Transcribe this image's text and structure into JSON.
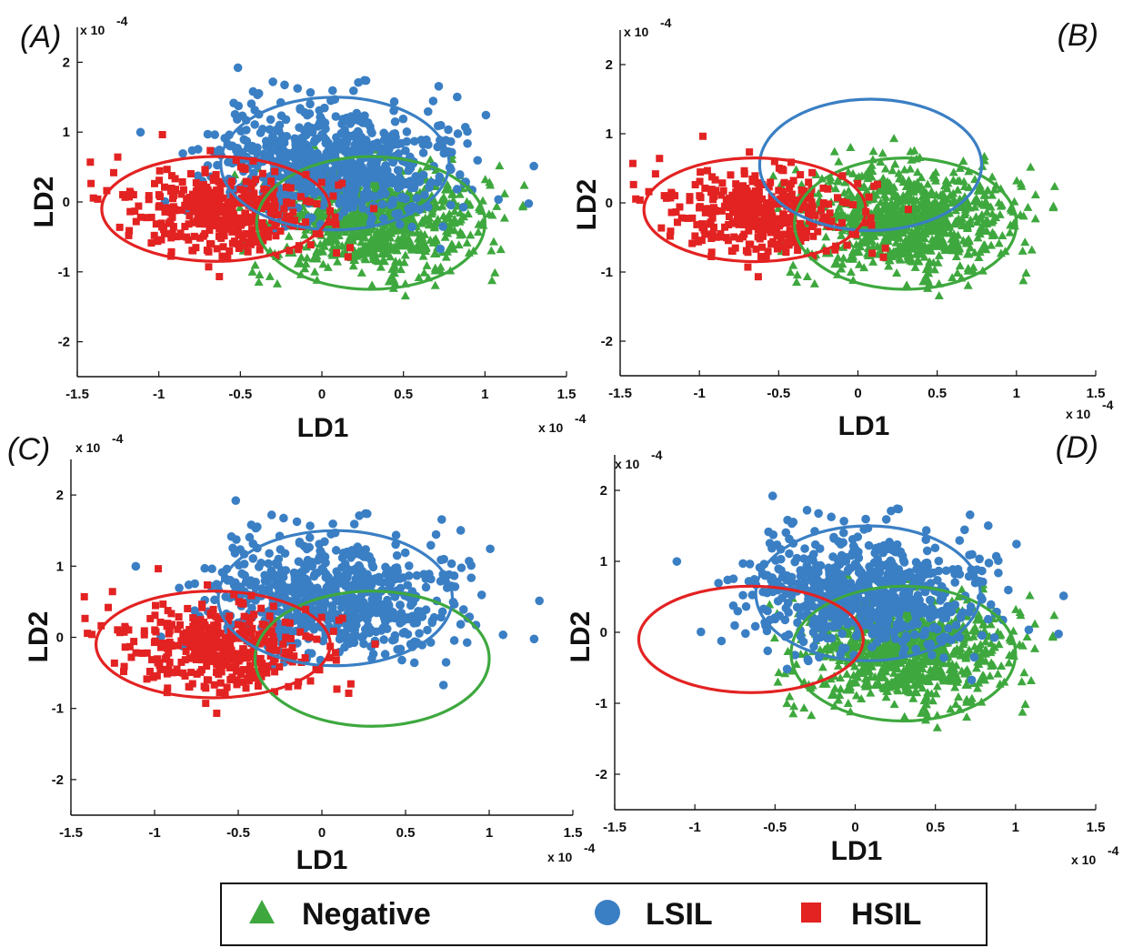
{
  "chart_data": {
    "type": "scatter",
    "series": [
      {
        "name": "Negative",
        "marker": "triangle",
        "color": "#3ea83e",
        "cluster": {
          "center": [
            0.3,
            -0.25
          ],
          "spread": [
            0.32,
            0.38
          ],
          "count": 900
        }
      },
      {
        "name": "LSIL",
        "marker": "circle",
        "color": "#3a7fc4",
        "cluster": {
          "center": [
            0.08,
            0.55
          ],
          "spread": [
            0.38,
            0.42
          ],
          "count": 700
        }
      },
      {
        "name": "HSIL",
        "marker": "square",
        "color": "#e32222",
        "cluster": {
          "center": [
            -0.62,
            -0.15
          ],
          "spread": [
            0.3,
            0.32
          ],
          "count": 380
        }
      }
    ],
    "ellipses": [
      {
        "series": "Negative",
        "center": [
          0.3,
          -0.3
        ],
        "radii": [
          0.7,
          0.95
        ]
      },
      {
        "series": "LSIL",
        "center": [
          0.08,
          0.55
        ],
        "radii": [
          0.7,
          0.95
        ]
      },
      {
        "series": "HSIL",
        "center": [
          -0.65,
          -0.1
        ],
        "radii": [
          0.7,
          0.75
        ]
      }
    ],
    "panels": [
      {
        "id": "A",
        "label": "(A)",
        "shown_series": [
          "Negative",
          "LSIL",
          "HSIL"
        ],
        "shown_ellipses": [
          "Negative",
          "LSIL",
          "HSIL"
        ]
      },
      {
        "id": "B",
        "label": "(B)",
        "shown_series": [
          "Negative",
          "HSIL"
        ],
        "shown_ellipses": [
          "Negative",
          "LSIL",
          "HSIL"
        ]
      },
      {
        "id": "C",
        "label": "(C)",
        "shown_series": [
          "LSIL",
          "HSIL"
        ],
        "shown_ellipses": [
          "Negative",
          "LSIL",
          "HSIL"
        ]
      },
      {
        "id": "D",
        "label": "(D)",
        "shown_series": [
          "Negative",
          "LSIL"
        ],
        "shown_ellipses": [
          "Negative",
          "LSIL",
          "HSIL"
        ]
      }
    ],
    "xlabel": "LD1",
    "ylabel": "LD2",
    "xlim": [
      -1.5,
      1.5
    ],
    "ylim": [
      -2.5,
      2.5
    ],
    "xticks": [
      -1.5,
      -1,
      -0.5,
      0,
      0.5,
      1,
      1.5
    ],
    "yticks": [
      -2,
      -1,
      0,
      1,
      2
    ],
    "xtick_labels": [
      "-1.5",
      "-1",
      "-0.5",
      "0",
      "0.5",
      "1",
      "1.5"
    ],
    "ytick_labels": [
      "-2",
      "-1",
      "0",
      "1",
      "2"
    ],
    "x_exponent": "x 10",
    "y_exponent": "x 10",
    "exponent_power": "-4",
    "legend": {
      "placement": "bottom-center",
      "entries": [
        "Negative",
        "LSIL",
        "HSIL"
      ]
    }
  }
}
